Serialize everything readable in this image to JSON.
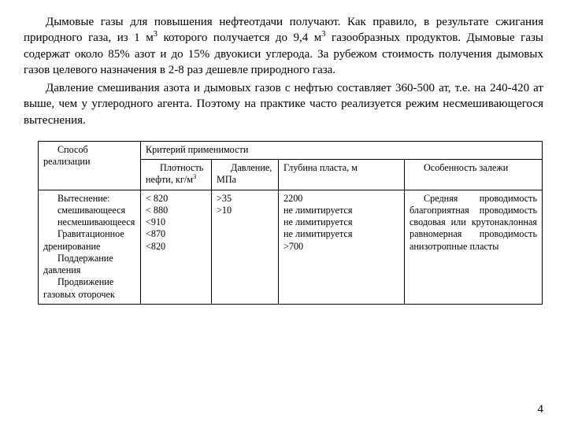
{
  "paragraphs": {
    "p1_html": "Дымовые газы для повышения нефтеотдачи получают. Как правило, в результате сжигания природного газа, из 1 м<sup>3</sup> которого получается до 9,4 м<sup>3</sup> газообразных продуктов. Дымовые газы содержат около 85% азот и до 15% двуокиси углерода. За рубежом стоимость получения дымовых газов целевого назначения в 2-8 раз дешевле природного газа.",
    "p2": "Давление смешивания азота и дымовых газов с нефтью составляет 360-500 ат, т.е. на 240-420 ат выше, чем у углеродного агента. Поэтому на практике часто реализуется режим несмешивающегося вытеснения."
  },
  "table": {
    "header": {
      "method": "Способ реализации",
      "criteria": "Критерий применимости",
      "density_html": "Плотность нефти, кг/м<sup>3</sup>",
      "pressure": "Давление, МПа",
      "depth": "Глубина пласта, м",
      "feature": "Особенность залежи"
    },
    "body": {
      "methods": [
        "Вытеснение:",
        "смешивающееся",
        "несмешивающееся",
        "Гравитационное дренирование",
        "Поддержание давления",
        "Продвижение газовых оторочек"
      ],
      "density": [
        "",
        "< 820",
        "< 880",
        "<910",
        "<870",
        "<820"
      ],
      "pressure": [
        "",
        ">35",
        "",
        "",
        "",
        ">10"
      ],
      "depth": [
        "",
        "2200",
        "не лимитируется",
        "не лимитируется",
        "не лимитируется",
        ">700"
      ],
      "feature": "Средняя проводимость благоприятная проводимость сводовая или крутонаклонная равномерная проводимость анизотропные пласты"
    }
  },
  "pageNumber": "4"
}
